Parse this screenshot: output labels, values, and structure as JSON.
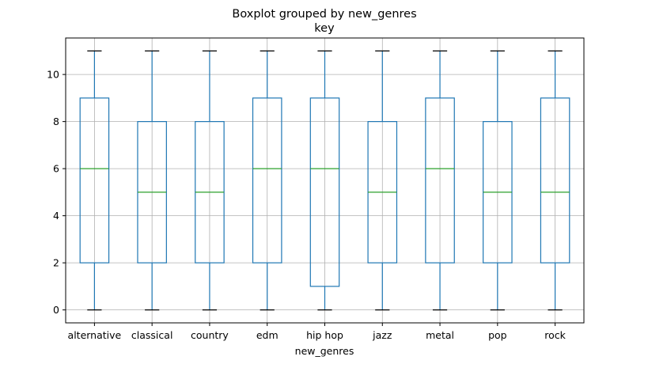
{
  "chart_data": {
    "type": "box",
    "suptitle": "Boxplot grouped by new_genres",
    "title": "key",
    "xlabel": "new_genres",
    "ylabel": "",
    "ylim": [
      -0.55,
      11.55
    ],
    "yticks": [
      0,
      2,
      4,
      6,
      8,
      10
    ],
    "grid": true,
    "colors": {
      "box": "#1f77b4",
      "median": "#2ca02c",
      "grid": "#b0b0b0",
      "cap": "#000000"
    },
    "categories": [
      "alternative",
      "classical",
      "country",
      "edm",
      "hip hop",
      "jazz",
      "metal",
      "pop",
      "rock"
    ],
    "boxes": [
      {
        "whislo": 0,
        "q1": 2,
        "med": 6,
        "q3": 9,
        "whishi": 11
      },
      {
        "whislo": 0,
        "q1": 2,
        "med": 5,
        "q3": 8,
        "whishi": 11
      },
      {
        "whislo": 0,
        "q1": 2,
        "med": 5,
        "q3": 8,
        "whishi": 11
      },
      {
        "whislo": 0,
        "q1": 2,
        "med": 6,
        "q3": 9,
        "whishi": 11
      },
      {
        "whislo": 0,
        "q1": 1,
        "med": 6,
        "q3": 9,
        "whishi": 11
      },
      {
        "whislo": 0,
        "q1": 2,
        "med": 5,
        "q3": 8,
        "whishi": 11
      },
      {
        "whislo": 0,
        "q1": 2,
        "med": 6,
        "q3": 9,
        "whishi": 11
      },
      {
        "whislo": 0,
        "q1": 2,
        "med": 5,
        "q3": 8,
        "whishi": 11
      },
      {
        "whislo": 0,
        "q1": 2,
        "med": 5,
        "q3": 9,
        "whishi": 11
      }
    ]
  }
}
